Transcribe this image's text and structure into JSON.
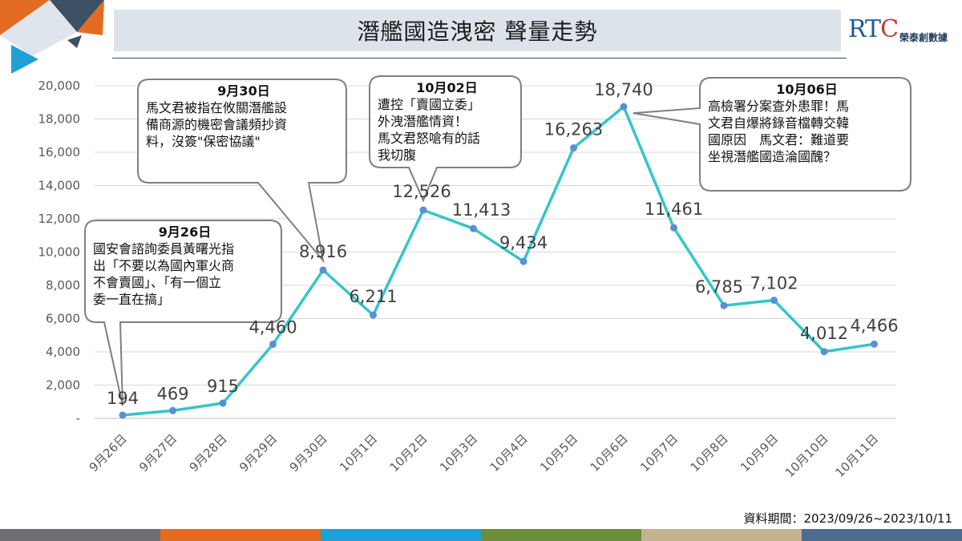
{
  "title": "潛艦國造洩密 聲量走勢",
  "logo": {
    "mark_r": "RT",
    "mark_c": "C",
    "name": "榮泰創數據"
  },
  "footer": {
    "period": "資料期間：2023/09/26~2023/10/11"
  },
  "colors": {
    "line": "#34c6c8",
    "marker": "#5a8fd6",
    "grid": "#d9d9d9",
    "bottom_bar": [
      "#6d6e71",
      "#e36c22",
      "#1fa0d8",
      "#6b8e3a",
      "#c4b38f",
      "#4d6b8e"
    ]
  },
  "chart_data": {
    "type": "line",
    "categories": [
      "9月26日",
      "9月27日",
      "9月28日",
      "9月29日",
      "9月30日",
      "10月1日",
      "10月2日",
      "10月3日",
      "10月4日",
      "10月5日",
      "10月6日",
      "10月7日",
      "10月8日",
      "10月9日",
      "10月10日",
      "10月11日"
    ],
    "values": [
      194,
      469,
      915,
      4460,
      8916,
      6211,
      12526,
      11413,
      9434,
      16263,
      18740,
      11461,
      6785,
      7102,
      4012,
      4466
    ],
    "data_labels": [
      "194",
      "469",
      "915",
      "4,460",
      "8,916",
      "6,211",
      "12,526",
      "11,413",
      "9,434",
      "16,263",
      "18,740",
      "11,461",
      "6,785",
      "7,102",
      "4,012",
      "4,466"
    ],
    "ylim": [
      0,
      20000
    ],
    "y_ticks": [
      0,
      2000,
      4000,
      6000,
      8000,
      10000,
      12000,
      14000,
      16000,
      18000,
      20000
    ],
    "y_tick_labels": [
      "-",
      "2,000",
      "4,000",
      "6,000",
      "8,000",
      "10,000",
      "12,000",
      "14,000",
      "16,000",
      "18,000",
      "20,000"
    ],
    "grid": true,
    "annotations": [
      {
        "index": 0,
        "date": "9月26日",
        "lines": [
          "國安會諮詢委員黃曙光指",
          "出「不要以為國內軍火商",
          "不會賣國」、「有一個立",
          "委一直在搞」"
        ]
      },
      {
        "index": 4,
        "date": "9月30日",
        "lines": [
          "馬文君被指在攸關潛艦設",
          "備商源的機密會議頻抄資",
          "料，沒簽\"保密協議\""
        ]
      },
      {
        "index": 6,
        "date": "10月02日",
        "lines": [
          "遭控「賣國立委」",
          "外洩潛艦情資！",
          "馬文君怒嗆有的話",
          "我切腹"
        ]
      },
      {
        "index": 10,
        "date": "10月06日",
        "lines": [
          "高檢署分案查外患罪！馬",
          "文君自爆將錄音檔轉交韓",
          "國原因　馬文君：難道要",
          "坐視潛艦國造淪國醜？"
        ]
      }
    ]
  }
}
